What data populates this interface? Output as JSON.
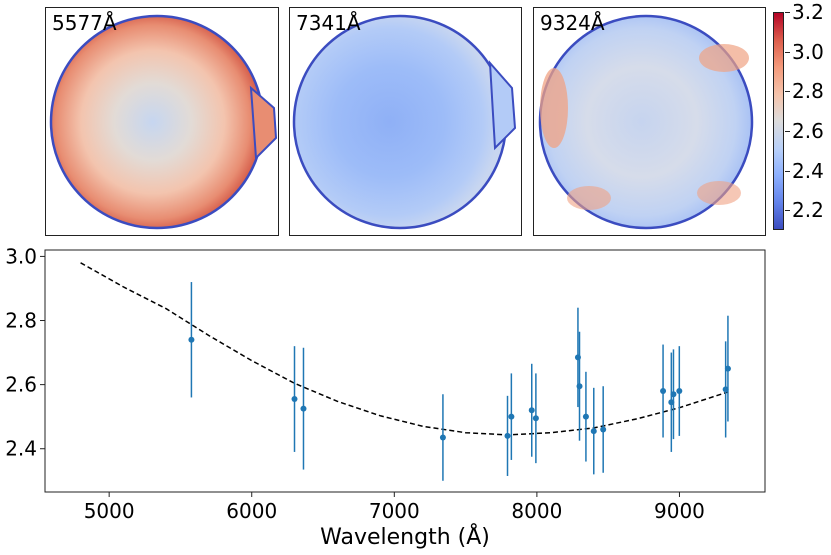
{
  "maps": [
    {
      "label": "5577Å",
      "pattern": "red-rim"
    },
    {
      "label": "7341Å",
      "pattern": "blue"
    },
    {
      "label": "9324Å",
      "pattern": "mixed"
    }
  ],
  "colorbar": {
    "min": 2.1,
    "max": 3.2,
    "ticks": [
      "2.2",
      "2.4",
      "2.6",
      "2.8",
      "3.0",
      "3.2"
    ],
    "tick_values": [
      2.2,
      2.4,
      2.6,
      2.8,
      3.0,
      3.2
    ],
    "colormap": "coolwarm"
  },
  "chart_data": {
    "type": "scatter",
    "xlabel": "Wavelength (Å)",
    "ylabel": "",
    "xlim": [
      4550,
      9600
    ],
    "ylim": [
      2.265,
      3.02
    ],
    "xticks": [
      "5000",
      "6000",
      "7000",
      "8000",
      "9000"
    ],
    "xtick_values": [
      5000,
      6000,
      7000,
      8000,
      9000
    ],
    "yticks": [
      "2.4",
      "2.6",
      "2.8",
      "3.0"
    ],
    "ytick_values": [
      2.4,
      2.6,
      2.8,
      3.0
    ],
    "point_color": "#1f77b4",
    "fit_color": "#000000",
    "points": [
      {
        "x": 5577,
        "y": 2.74,
        "err": 0.18
      },
      {
        "x": 6300,
        "y": 2.555,
        "err": 0.165
      },
      {
        "x": 6363,
        "y": 2.525,
        "err": 0.19
      },
      {
        "x": 7341,
        "y": 2.435,
        "err": 0.135
      },
      {
        "x": 7794,
        "y": 2.44,
        "err": 0.125
      },
      {
        "x": 7821,
        "y": 2.5,
        "err": 0.135
      },
      {
        "x": 7964,
        "y": 2.52,
        "err": 0.145
      },
      {
        "x": 7993,
        "y": 2.495,
        "err": 0.14
      },
      {
        "x": 8288,
        "y": 2.685,
        "err": 0.155
      },
      {
        "x": 8299,
        "y": 2.595,
        "err": 0.17
      },
      {
        "x": 8344,
        "y": 2.5,
        "err": 0.14
      },
      {
        "x": 8399,
        "y": 2.455,
        "err": 0.135
      },
      {
        "x": 8465,
        "y": 2.46,
        "err": 0.135
      },
      {
        "x": 8885,
        "y": 2.58,
        "err": 0.145
      },
      {
        "x": 8943,
        "y": 2.545,
        "err": 0.155
      },
      {
        "x": 8958,
        "y": 2.57,
        "err": 0.14
      },
      {
        "x": 8999,
        "y": 2.58,
        "err": 0.14
      },
      {
        "x": 9324,
        "y": 2.585,
        "err": 0.15
      },
      {
        "x": 9340,
        "y": 2.65,
        "err": 0.165
      }
    ],
    "fit": {
      "x": [
        4800,
        5100,
        5400,
        5700,
        6000,
        6300,
        6600,
        6900,
        7200,
        7500,
        7800,
        8100,
        8400,
        8700,
        9000,
        9340
      ],
      "y": [
        2.98,
        2.905,
        2.837,
        2.753,
        2.675,
        2.604,
        2.548,
        2.503,
        2.47,
        2.45,
        2.443,
        2.45,
        2.465,
        2.493,
        2.528,
        2.577
      ]
    }
  }
}
